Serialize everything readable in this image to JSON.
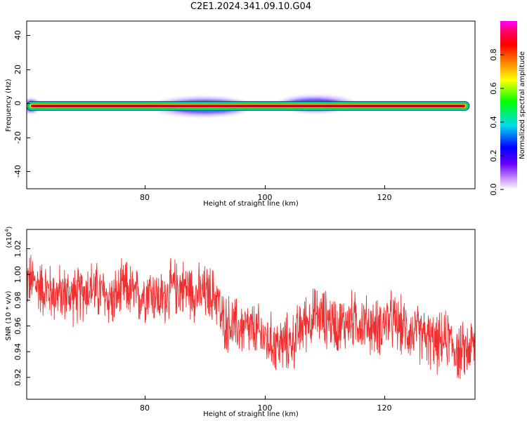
{
  "title": "C2E1.2024.341.09.10.G04",
  "colors": {
    "snr_line": "#f03030",
    "spectrogram_core": "#cc0022",
    "background": "#ffffff"
  },
  "chart_data": [
    {
      "type": "heatmap",
      "title": "C2E1.2024.341.09.10.G04",
      "xlabel": "Height of straight line (km)",
      "ylabel": "Frequency (Hz)",
      "xlim": [
        60.5,
        135.5
      ],
      "ylim": [
        -50,
        49
      ],
      "xticks": [
        "80",
        "100",
        "120"
      ],
      "yticks": [
        "40",
        "20",
        "0",
        "-20",
        "-40"
      ],
      "colorbar": {
        "label": "Normalized spectral amplitude",
        "range": [
          0,
          1
        ],
        "ticks": [
          "0.0",
          "0.2",
          "0.4",
          "0.6",
          "0.8"
        ],
        "colormap": "rainbow (purple-blue-cyan-green-yellow-orange-red-magenta)"
      },
      "features": [
        {
          "description": "narrow high-amplitude band",
          "frequency_hz": -1,
          "x_range": [
            60.5,
            134.5
          ],
          "amplitude": 1.0
        },
        {
          "description": "broadened spread",
          "x_range": [
            83,
            98
          ],
          "frequency_spread_hz": [
            -5,
            3
          ],
          "amplitude": 0.4
        },
        {
          "description": "broadened spread",
          "x_range": [
            103,
            113
          ],
          "frequency_spread_hz": [
            -3,
            4
          ],
          "amplitude": 0.4
        }
      ]
    },
    {
      "type": "line",
      "xlabel": "Height of straight line (km)",
      "ylabel": "SNR (10 * v/v)",
      "y_multiplier": "(x10^4)",
      "xlim": [
        60.5,
        135.5
      ],
      "ylim": [
        0.903,
        1.035
      ],
      "xticks": [
        "80",
        "100",
        "120"
      ],
      "yticks": [
        "0.92",
        "0.94",
        "0.96",
        "0.98",
        "1.00",
        "1.02"
      ],
      "series": [
        {
          "x": [
            61,
            63,
            65,
            67,
            69,
            71,
            73,
            75,
            77,
            79,
            81,
            83,
            85,
            87,
            89,
            91,
            92.5,
            93,
            95,
            97,
            99,
            101,
            103,
            105,
            107,
            109,
            111,
            113,
            115,
            117,
            119,
            121,
            123,
            125,
            127,
            129,
            131,
            133,
            135
          ],
          "values": [
            0.995,
            0.99,
            0.985,
            0.985,
            0.983,
            0.99,
            0.985,
            0.98,
            0.99,
            0.982,
            0.988,
            0.98,
            0.99,
            0.99,
            0.985,
            0.985,
            0.982,
            0.965,
            0.96,
            0.958,
            0.955,
            0.948,
            0.945,
            0.948,
            0.963,
            0.968,
            0.965,
            0.96,
            0.965,
            0.962,
            0.958,
            0.965,
            0.96,
            0.955,
            0.952,
            0.945,
            0.95,
            0.938,
            0.945
          ],
          "noise_amplitude": 0.018
        }
      ]
    }
  ]
}
